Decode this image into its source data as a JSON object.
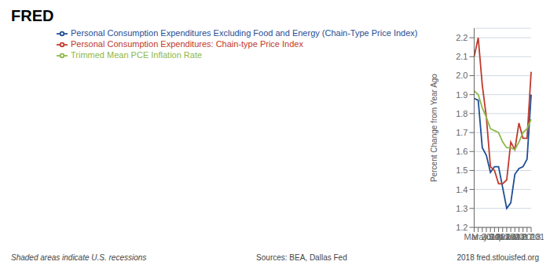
{
  "chart_data": {
    "type": "line",
    "title": "FRED",
    "y_label": "Percent Change from Year Ago",
    "categories": [
      null,
      null,
      "Mar 2017",
      null,
      "May 2017",
      null,
      "Jul 2017",
      null,
      "Sep 2017",
      null,
      "Nov 2017",
      null,
      "Jan 2018",
      null,
      "Mar 2018"
    ],
    "series": [
      {
        "name": "Personal Consumption Expenditures Excluding Food and Energy (Chain-Type Price Index)",
        "color": "#1f4e96",
        "values": [
          1.88,
          1.87,
          1.62,
          1.58,
          1.49,
          1.52,
          1.52,
          1.41,
          1.3,
          1.33,
          1.48,
          1.51,
          1.52,
          1.56,
          1.9
        ]
      },
      {
        "name": "Personal Consumption Expenditures: Chain-type Price Index",
        "color": "#c0392b",
        "values": [
          2.1,
          2.2,
          1.95,
          1.78,
          1.52,
          1.5,
          1.43,
          1.43,
          1.45,
          1.65,
          1.61,
          1.75,
          1.67,
          1.67,
          2.02
        ]
      },
      {
        "name": "Trimmed Mean PCE Inflation Rate",
        "color": "#8db84a",
        "values": [
          1.92,
          1.9,
          1.83,
          1.78,
          1.72,
          1.71,
          1.7,
          1.65,
          1.62,
          1.62,
          1.61,
          1.65,
          1.7,
          1.72,
          1.77
        ]
      }
    ],
    "ylim": [
      1.2,
      2.25
    ],
    "yticks": [
      1.2,
      1.3,
      1.4,
      1.5,
      1.6,
      1.7,
      1.8,
      1.9,
      {
        "value": 2.0,
        "label": "2.0"
      },
      2.1,
      2.2
    ],
    "grid": true,
    "legend": "top",
    "annotations": [
      "Shaded areas indicate U.S. recessions",
      "Sources: BEA, Dallas Fed",
      "2018 fred.stlouisfed.org"
    ]
  }
}
